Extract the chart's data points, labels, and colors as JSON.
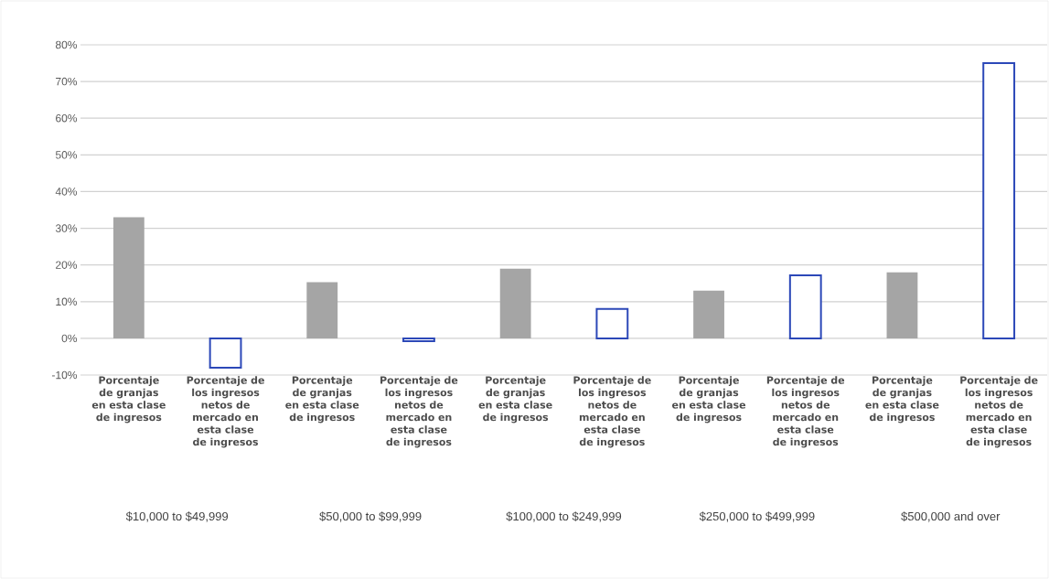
{
  "chart_data": {
    "type": "bar",
    "categories": [
      "Porcentaje de granjas en esta clase de ingresos",
      "Porcentaje de los ingresos netos de mercado en esta clase de ingresos",
      "Porcentaje de granjas en esta clase de ingresos",
      "Porcentaje de los ingresos netos de mercado en esta clase de ingresos",
      "Porcentaje de granjas en esta clase de ingresos",
      "Porcentaje de los ingresos netos de mercado en esta clase de ingresos",
      "Porcentaje de granjas en esta clase de ingresos",
      "Porcentaje de los ingresos netos de mercado en esta clase de ingresos",
      "Porcentaje de granjas en esta clase de ingresos",
      "Porcentaje de los ingresos netos de mercado en esta clase de ingresos"
    ],
    "series": [
      {
        "color": "#a5a5a5",
        "values": [
          33,
          null,
          15.3,
          null,
          19,
          null,
          13,
          null,
          18,
          null
        ]
      },
      {
        "color": "#2c48b8",
        "values": [
          null,
          -8,
          null,
          -0.8,
          null,
          8,
          null,
          17.2,
          null,
          75
        ]
      }
    ],
    "annotations": [
      "$10,000 to $49,999",
      "$50,000 to $99,999",
      "$100,000 to $249,999",
      "$250,000 to $499,999",
      "$500,000 and over"
    ],
    "ylim": [
      -10,
      80
    ],
    "yticks": [
      {
        "value": -10,
        "label": "-10%"
      },
      {
        "value": 0,
        "label": "0%"
      },
      {
        "value": 10,
        "label": "10%"
      },
      {
        "value": 20,
        "label": "20%"
      },
      {
        "value": 30,
        "label": "30%"
      },
      {
        "value": 40,
        "label": "40%"
      },
      {
        "value": 50,
        "label": "50%"
      },
      {
        "value": 60,
        "label": "60%"
      },
      {
        "value": 70,
        "label": "70%"
      },
      {
        "value": 80,
        "label": "80%"
      }
    ],
    "grid": "y"
  }
}
